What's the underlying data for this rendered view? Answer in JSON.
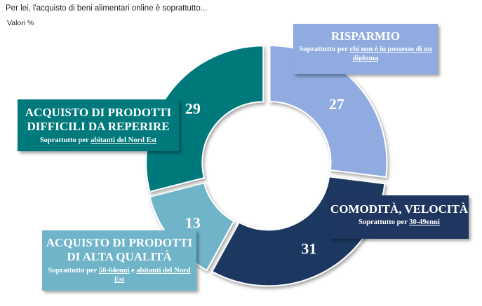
{
  "title": "Per lei, l'acquisto di beni alimentari online è soprattutto...",
  "subtitle": "Valori %",
  "chart_data": {
    "type": "donut",
    "slices": [
      {
        "key": "risparmio",
        "value": 27,
        "color": "#8fabe0"
      },
      {
        "key": "comodita",
        "value": 31,
        "color": "#1f3760"
      },
      {
        "key": "qualita",
        "value": 13,
        "color": "#6fb4c9"
      },
      {
        "key": "reperire",
        "value": 29,
        "color": "#00797c"
      }
    ]
  },
  "boxes": {
    "risparmio": {
      "head": "RISPARMIO",
      "note_prefix": "Soprattutto per ",
      "note_u1": "chi non è in possesso di un diploma"
    },
    "comodita": {
      "head": "COMODITÀ, VELOCITÀ",
      "note_prefix": "Soprattutto per ",
      "note_u1": "30-49enni"
    },
    "reperire": {
      "head_line1": "ACQUISTO DI PRODOTTI",
      "head_line2": "DIFFICILI DA REPERIRE",
      "note_prefix": "Soprattutto per ",
      "note_u1": "abitanti del Nord Est"
    },
    "qualita": {
      "head_line1": "ACQUISTO DI PRODOTTI",
      "head_line2": "DI ALTA QUALITÀ",
      "note_prefix": "Soprattutto per ",
      "note_u1": "50-64enni",
      "note_mid": " e ",
      "note_u2": "abitanti del Nord Est"
    }
  }
}
